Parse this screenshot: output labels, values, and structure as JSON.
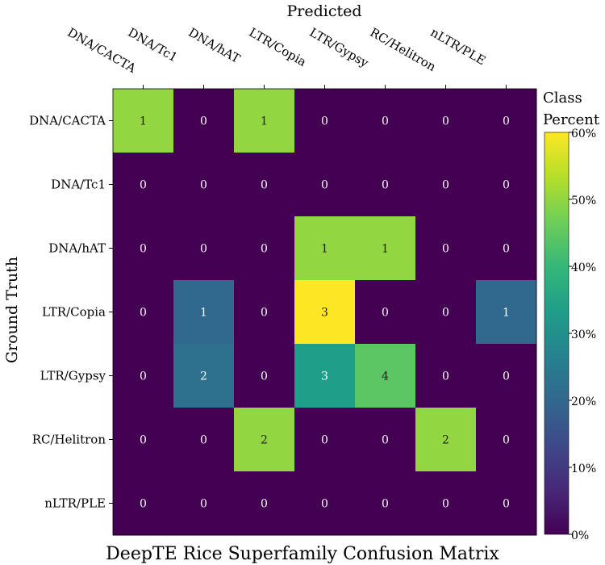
{
  "chart_data": {
    "type": "heatmap",
    "title": "DeepTE Rice Superfamily Confusion Matrix",
    "xlabel": "Predicted",
    "ylabel": "Ground Truth",
    "x_categories": [
      "DNA/CACTA",
      "DNA/Tc1",
      "DNA/hAT",
      "LTR/Copia",
      "LTR/Gypsy",
      "RC/Helitron",
      "nLTR/PLE"
    ],
    "y_categories": [
      "DNA/CACTA",
      "DNA/Tc1",
      "DNA/hAT",
      "LTR/Copia",
      "LTR/Gypsy",
      "RC/Helitron",
      "nLTR/PLE"
    ],
    "counts": [
      [
        1,
        0,
        1,
        0,
        0,
        0,
        0
      ],
      [
        0,
        0,
        0,
        0,
        0,
        0,
        0
      ],
      [
        0,
        0,
        0,
        1,
        1,
        0,
        0
      ],
      [
        0,
        1,
        0,
        3,
        0,
        0,
        1
      ],
      [
        0,
        2,
        0,
        3,
        4,
        0,
        0
      ],
      [
        0,
        0,
        2,
        0,
        0,
        2,
        0
      ],
      [
        0,
        0,
        0,
        0,
        0,
        0,
        0
      ]
    ],
    "class_percent": [
      [
        0.5,
        0,
        0.5,
        0,
        0,
        0,
        0
      ],
      [
        0,
        0,
        0,
        0,
        0,
        0,
        0
      ],
      [
        0,
        0,
        0,
        0.5,
        0.5,
        0,
        0
      ],
      [
        0,
        0.2,
        0,
        0.6,
        0,
        0,
        0.2
      ],
      [
        0,
        0.2222,
        0,
        0.3333,
        0.4444,
        0,
        0
      ],
      [
        0,
        0,
        0.5,
        0,
        0,
        0.5,
        0
      ],
      [
        0,
        0,
        0,
        0,
        0,
        0,
        0
      ]
    ],
    "colorbar": {
      "label": "Class Percent",
      "range": [
        0,
        0.6
      ],
      "ticks": [
        0,
        0.1,
        0.2,
        0.3,
        0.4,
        0.5,
        0.6
      ],
      "tick_labels": [
        "0%",
        "10%",
        "20%",
        "30%",
        "40%",
        "50%",
        "60%"
      ]
    },
    "colormap": "viridis",
    "grid": false,
    "x_tick_position": "top"
  },
  "colors": {
    "viridis": [
      "#440154",
      "#482878",
      "#3e4989",
      "#31688e",
      "#26828e",
      "#1f9e89",
      "#35b779",
      "#6ece58",
      "#b5de2b",
      "#fde725"
    ],
    "dark_text": "#1e1e1e",
    "light_text": "#ffffff"
  }
}
